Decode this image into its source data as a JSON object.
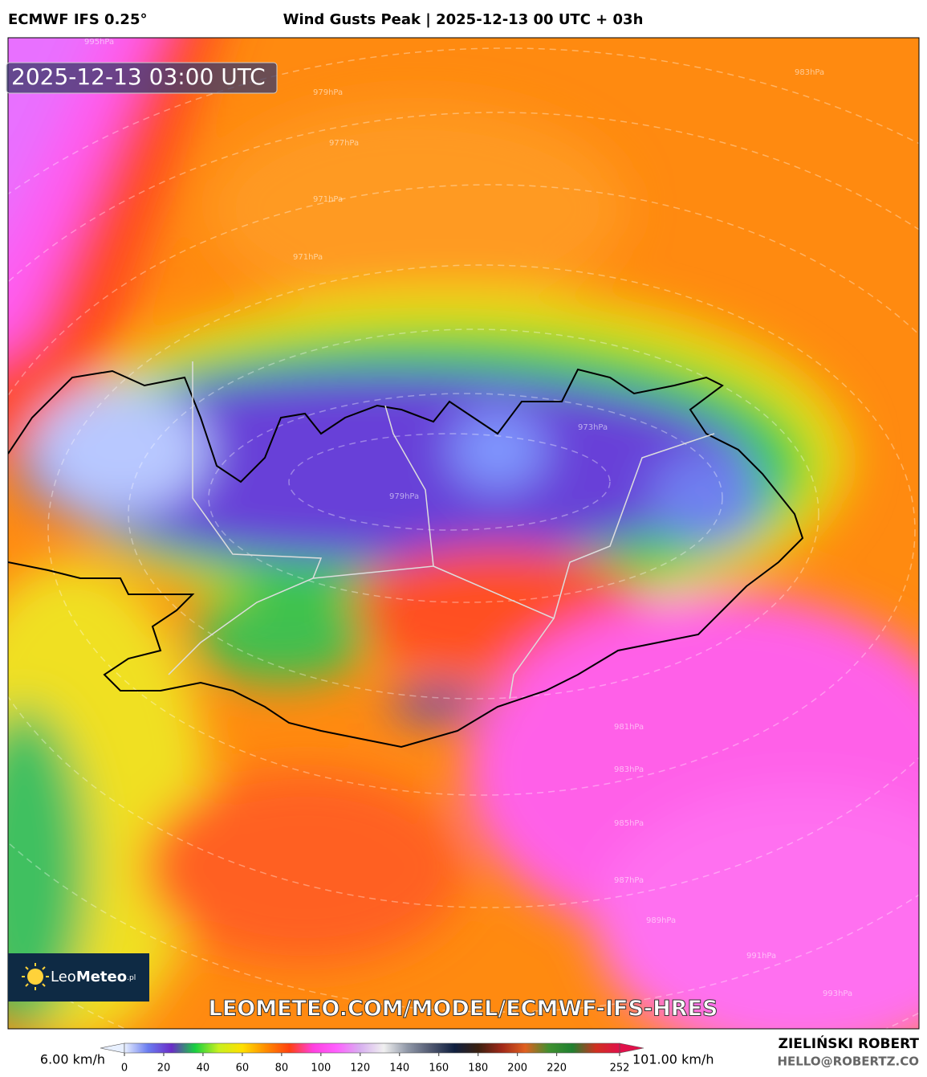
{
  "header": {
    "model": "ECMWF IFS 0.25°",
    "title": "Wind Gusts Peak | 2025-12-13 00 UTC + 03h"
  },
  "map": {
    "valid_time": "2025-12-13 03:00 UTC",
    "watermark": "LEOMETEO.COM/MODEL/ECMWF-IFS-HRES",
    "logo": {
      "leo": "Leo",
      "meteo": "Meteo",
      "suffix": ".pl"
    },
    "isobar_labels": [
      "995hPa",
      "983hPa",
      "979hPa",
      "977hPa",
      "971hPa",
      "971hPa",
      "973hPa",
      "979hPa",
      "981hPa",
      "983hPa",
      "985hPa",
      "987hPa",
      "989hPa",
      "991hPa",
      "993hPa"
    ]
  },
  "colorbar": {
    "min_label": "6.00 km/h",
    "max_label": "101.00 km/h",
    "range": [
      0,
      252
    ],
    "ticks": [
      0,
      20,
      40,
      60,
      80,
      100,
      120,
      140,
      160,
      180,
      200,
      220,
      252
    ],
    "colors": [
      "#e8f0ff",
      "#6a7cf0",
      "#6a2cc8",
      "#18d040",
      "#c8f020",
      "#ffe000",
      "#ff8c00",
      "#ff4010",
      "#ff40e0",
      "#ff60ff",
      "#d8b0f0",
      "#f0f0f0",
      "#9098a8",
      "#505870",
      "#102040",
      "#3a2010",
      "#a02818",
      "#e06020",
      "#409030",
      "#208030",
      "#d03020",
      "#e0104a"
    ]
  },
  "footer": {
    "author": "ZIELIŃSKI ROBERT",
    "email": "HELLO@ROBERTZ.CO"
  }
}
